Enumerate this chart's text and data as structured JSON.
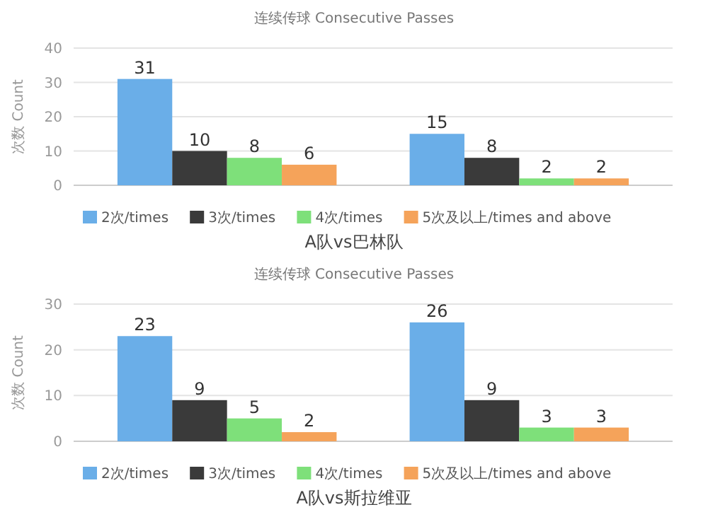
{
  "chart_data": [
    {
      "type": "bar",
      "title": "连续传球 Consecutive Passes",
      "ylabel": "次数 Count",
      "categories": [
        null,
        null
      ],
      "series": [
        {
          "name": "2次/times",
          "color": "#6aaee8",
          "values": [
            31,
            15
          ]
        },
        {
          "name": "3次/times",
          "color": "#3a3a3a",
          "values": [
            10,
            8
          ]
        },
        {
          "name": "4次/times",
          "color": "#7ee07a",
          "values": [
            8,
            2
          ]
        },
        {
          "name": "5次及以上/times and above",
          "color": "#f5a35a",
          "values": [
            6,
            2
          ]
        }
      ],
      "ylim": [
        0,
        40
      ],
      "yticks": [
        0,
        10,
        20,
        30,
        40
      ],
      "grid": "y",
      "legend": "bottom",
      "data_labels": true,
      "annotations": [
        "A队vs巴林队"
      ]
    },
    {
      "type": "bar",
      "title": "连续传球 Consecutive Passes",
      "ylabel": "次数 Count",
      "categories": [
        null,
        null
      ],
      "series": [
        {
          "name": "2次/times",
          "color": "#6aaee8",
          "values": [
            23,
            26
          ]
        },
        {
          "name": "3次/times",
          "color": "#3a3a3a",
          "values": [
            9,
            9
          ]
        },
        {
          "name": "4次/times",
          "color": "#7ee07a",
          "values": [
            5,
            3
          ]
        },
        {
          "name": "5次及以上/times and above",
          "color": "#f5a35a",
          "values": [
            2,
            3
          ]
        }
      ],
      "ylim": [
        0,
        30
      ],
      "yticks": [
        0,
        10,
        20,
        30
      ],
      "grid": "y",
      "legend": "bottom",
      "data_labels": true,
      "annotations": [
        "A队vs斯拉维亚"
      ]
    }
  ]
}
